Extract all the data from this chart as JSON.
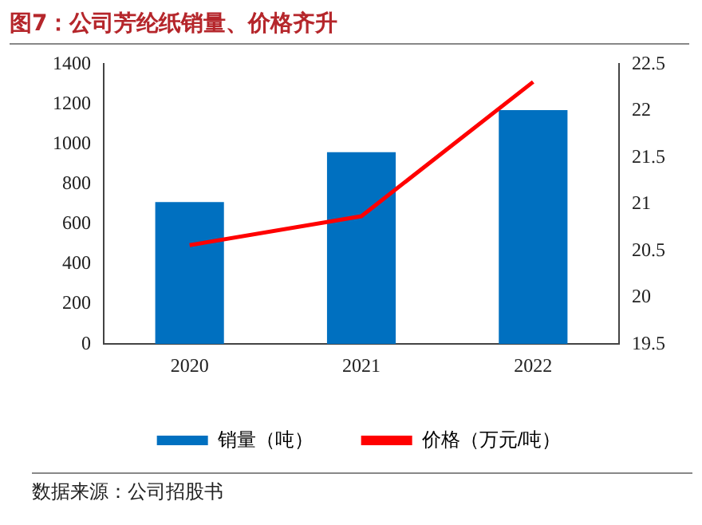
{
  "chart_data": {
    "type": "bar",
    "title": "图7：公司芳纶纸销量、价格齐升",
    "categories": [
      "2020",
      "2021",
      "2022"
    ],
    "series": [
      {
        "name": "销量（吨）",
        "color": "#0070c0",
        "values": [
          710,
          960,
          1170
        ]
      },
      {
        "name": "价格（万元/吨）",
        "type": "line",
        "axis": "y2",
        "color": "#ff0000",
        "values": [
          20.56,
          20.87,
          22.31
        ]
      }
    ],
    "ylim": [
      0,
      1400
    ],
    "yticks": [
      0,
      200,
      400,
      600,
      800,
      1000,
      1200,
      1400
    ],
    "y2lim": [
      19.5,
      22.5
    ],
    "y2ticks": [
      19.5,
      20,
      20.5,
      21,
      21.5,
      22,
      22.5
    ],
    "legend": "bottom",
    "grid": false,
    "marker": "none",
    "annotations": [
      "数据来源：公司招股书"
    ]
  }
}
